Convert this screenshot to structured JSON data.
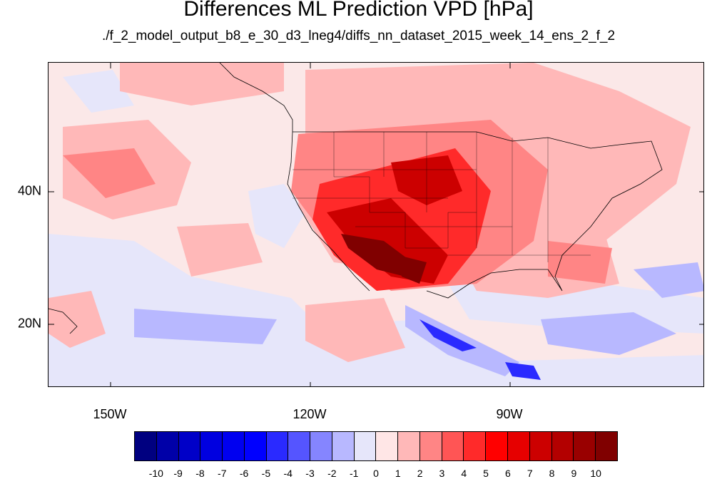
{
  "title": "Differences ML Prediction VPD [hPa]",
  "subtitle": "./f_2_model_output_b8_e_30_d3_lneg4/diffs_nn_dataset_2015_week_14_ens_2_f_2",
  "map": {
    "lon_labels": [
      "150W",
      "120W",
      "90W"
    ],
    "lat_labels": [
      "40N",
      "20N"
    ]
  },
  "colorbar": {
    "colors": [
      "#000080",
      "#0000a8",
      "#0000c8",
      "#0000e0",
      "#0000f0",
      "#0000ff",
      "#2a2aff",
      "#5555ff",
      "#8585ff",
      "#b8b8ff",
      "#e6e6fa",
      "#ffe6e6",
      "#ffb8b8",
      "#ff8585",
      "#ff5555",
      "#ff2a2a",
      "#ff0000",
      "#e60000",
      "#cc0000",
      "#b30000",
      "#990000",
      "#800000"
    ],
    "labels": [
      "-10",
      "-9",
      "-8",
      "-7",
      "-6",
      "-5",
      "-4",
      "-3",
      "-2",
      "-1",
      "0",
      "1",
      "2",
      "3",
      "4",
      "5",
      "6",
      "7",
      "8",
      "9",
      "10"
    ]
  }
}
